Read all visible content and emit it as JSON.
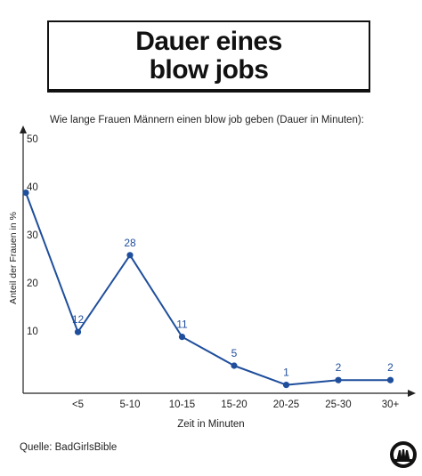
{
  "header": {
    "title": "Dauer eines blow jobs"
  },
  "chart_data": {
    "type": "line",
    "title": "Wie lange Frauen Männern einen blow job geben (Dauer in Minuten):",
    "xlabel": "Zeit in Minuten",
    "ylabel": "Anteil der Frauen in %",
    "categories": [
      "",
      "<5",
      "5-10",
      "10-15",
      "15-20",
      "20-25",
      "25-30",
      "30+"
    ],
    "values": [
      41,
      12,
      28,
      11,
      5,
      1,
      2,
      2
    ],
    "data_labels": [
      "",
      "12",
      "28",
      "11",
      "5",
      "1",
      "2",
      "2"
    ],
    "yticks": [
      10,
      20,
      30,
      40,
      50
    ],
    "ylim": [
      0,
      55
    ],
    "grid": false,
    "line_color": "#1f4e9c",
    "label_color": "#1f4e9c"
  },
  "footer": {
    "source": "Quelle: BadGirlsBible",
    "logo_icon": "hands-logo-icon"
  }
}
